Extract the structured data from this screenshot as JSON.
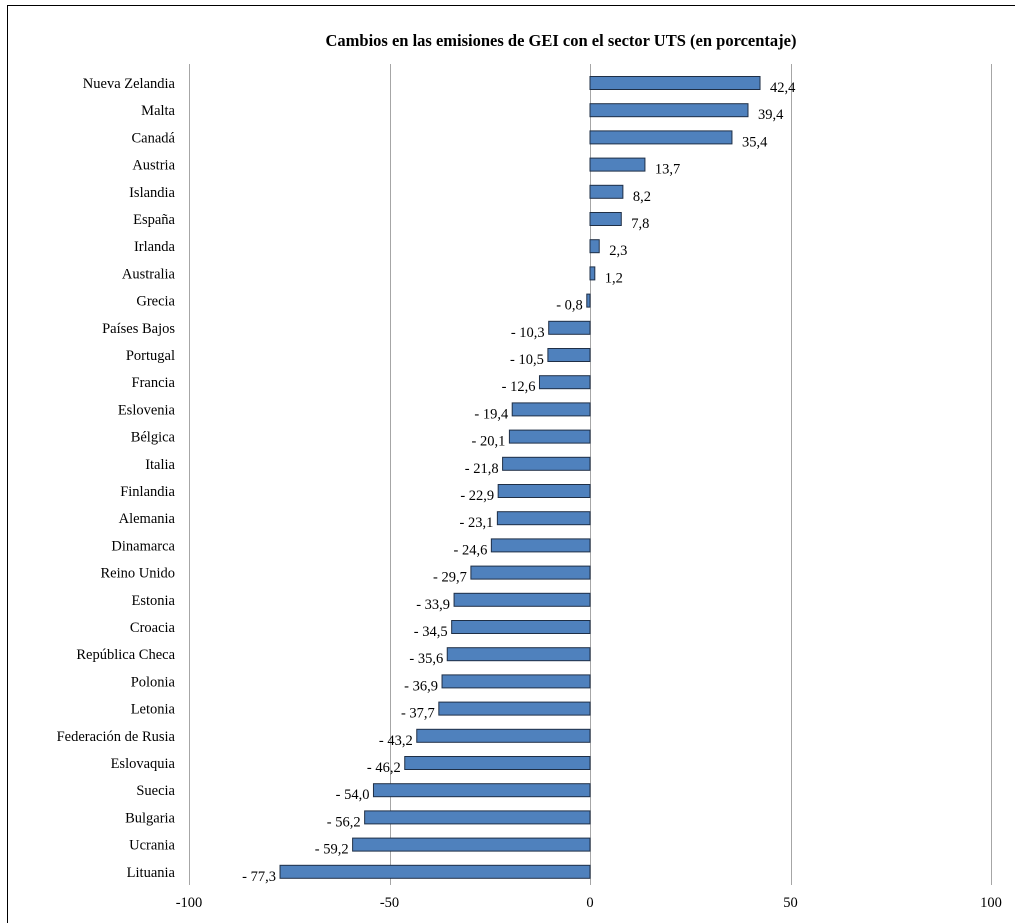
{
  "chart_data": {
    "type": "bar",
    "orientation": "horizontal",
    "title": "Cambios en las emisiones de GEI con el sector UTS (en porcentaje)",
    "xlabel": "",
    "ylabel": "",
    "categories": [
      "Nueva Zelandia",
      "Malta",
      "Canadá",
      "Austria",
      "Islandia",
      "España",
      "Irlanda",
      "Australia",
      "Grecia",
      "Países Bajos",
      "Portugal",
      "Francia",
      "Eslovenia",
      "Bélgica",
      "Italia",
      "Finlandia",
      "Alemania",
      "Dinamarca",
      "Reino Unido",
      "Estonia",
      "Croacia",
      "República Checa",
      "Polonia",
      "Letonia",
      "Federación de Rusia",
      "Eslovaquia",
      "Suecia",
      "Bulgaria",
      "Ucrania",
      "Lituania"
    ],
    "values": [
      42.4,
      39.4,
      35.4,
      13.7,
      8.2,
      7.8,
      2.3,
      1.2,
      -0.8,
      -10.3,
      -10.5,
      -12.6,
      -19.4,
      -20.1,
      -21.8,
      -22.9,
      -23.1,
      -24.6,
      -29.7,
      -33.9,
      -34.5,
      -35.6,
      -36.9,
      -37.7,
      -43.2,
      -46.2,
      -54.0,
      -56.2,
      -59.2,
      -77.3
    ],
    "value_labels": [
      "42,4",
      "39,4",
      "35,4",
      "13,7",
      "8,2",
      "7,8",
      "2,3",
      "1,2",
      "- 0,8",
      "- 10,3",
      "- 10,5",
      "- 12,6",
      "- 19,4",
      "- 20,1",
      "- 21,8",
      "- 22,9",
      "- 23,1",
      "- 24,6",
      "- 29,7",
      "- 33,9",
      "- 34,5",
      "- 35,6",
      "- 36,9",
      "- 37,7",
      "- 43,2",
      "- 46,2",
      "- 54,0",
      "- 56,2",
      "- 59,2",
      "- 77,3"
    ],
    "xlim": [
      -100,
      100
    ],
    "xticks": [
      -100,
      -50,
      0,
      50,
      100
    ],
    "xtick_labels": [
      "-100",
      "-50",
      "0",
      "50",
      "100"
    ],
    "grid": "vertical",
    "legend": "none",
    "bar_color": "#4f81bd",
    "bar_border_color": "#1f2f46",
    "grid_color": "#a6a6a6"
  }
}
